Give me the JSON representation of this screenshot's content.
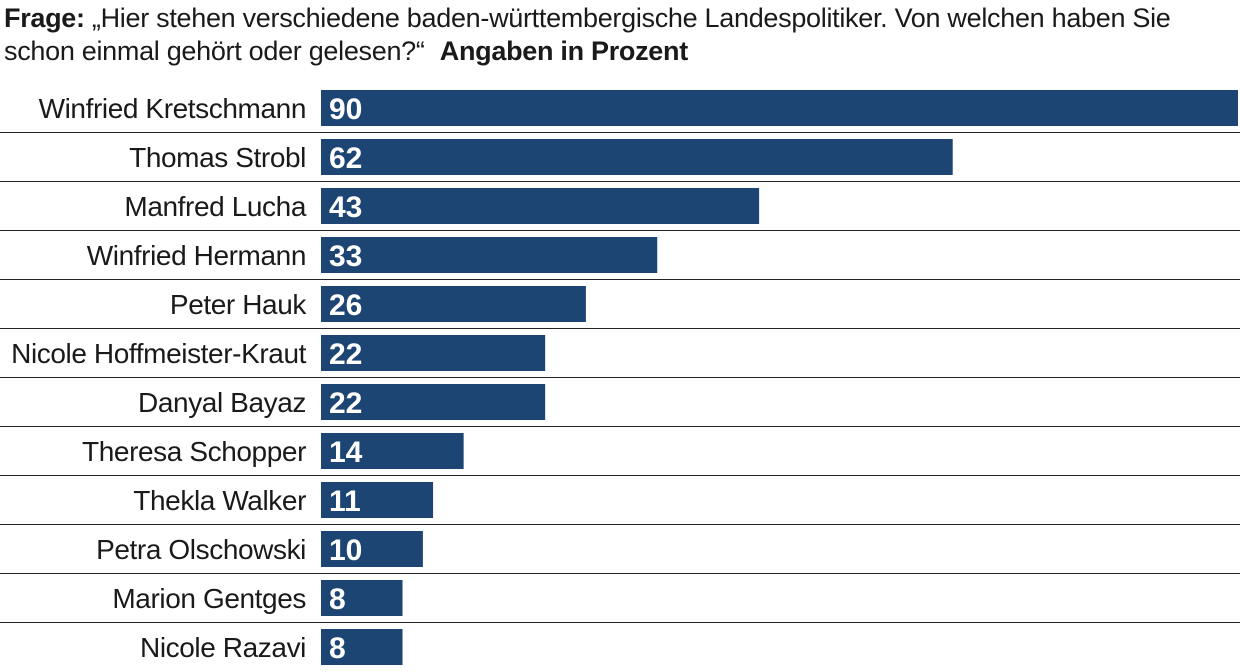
{
  "header": {
    "prefix": "Frage:",
    "question": "„Hier stehen verschiedene baden-württembergische Landespolitiker. Von welchen haben Sie schon einmal gehört oder gelesen?“",
    "unit_note": "Angaben in Prozent"
  },
  "colors": {
    "bar": "#1c4573",
    "bar_label": "#ffffff",
    "divider": "#222222"
  },
  "chart_data": {
    "type": "bar",
    "orientation": "horizontal",
    "title": "„Hier stehen verschiedene baden-württembergische Landespolitiker. Von welchen haben Sie schon einmal gehört oder gelesen?“",
    "categories": [
      "Winfried Kretschmann",
      "Thomas Strobl",
      "Manfred Lucha",
      "Winfried Hermann",
      "Peter Hauk",
      "Nicole Hoffmeister-Kraut",
      "Danyal Bayaz",
      "Theresa Schopper",
      "Thekla Walker",
      "Petra Olschowski",
      "Marion Gentges",
      "Nicole Razavi"
    ],
    "values": [
      90,
      62,
      43,
      33,
      26,
      22,
      22,
      14,
      11,
      10,
      8,
      8
    ],
    "value_labels": [
      "90",
      "62",
      "43",
      "33",
      "26",
      "22",
      "22",
      "14",
      "11",
      "10",
      "8",
      "8"
    ],
    "xlim": [
      0,
      90
    ],
    "grid": false,
    "legend": false
  }
}
